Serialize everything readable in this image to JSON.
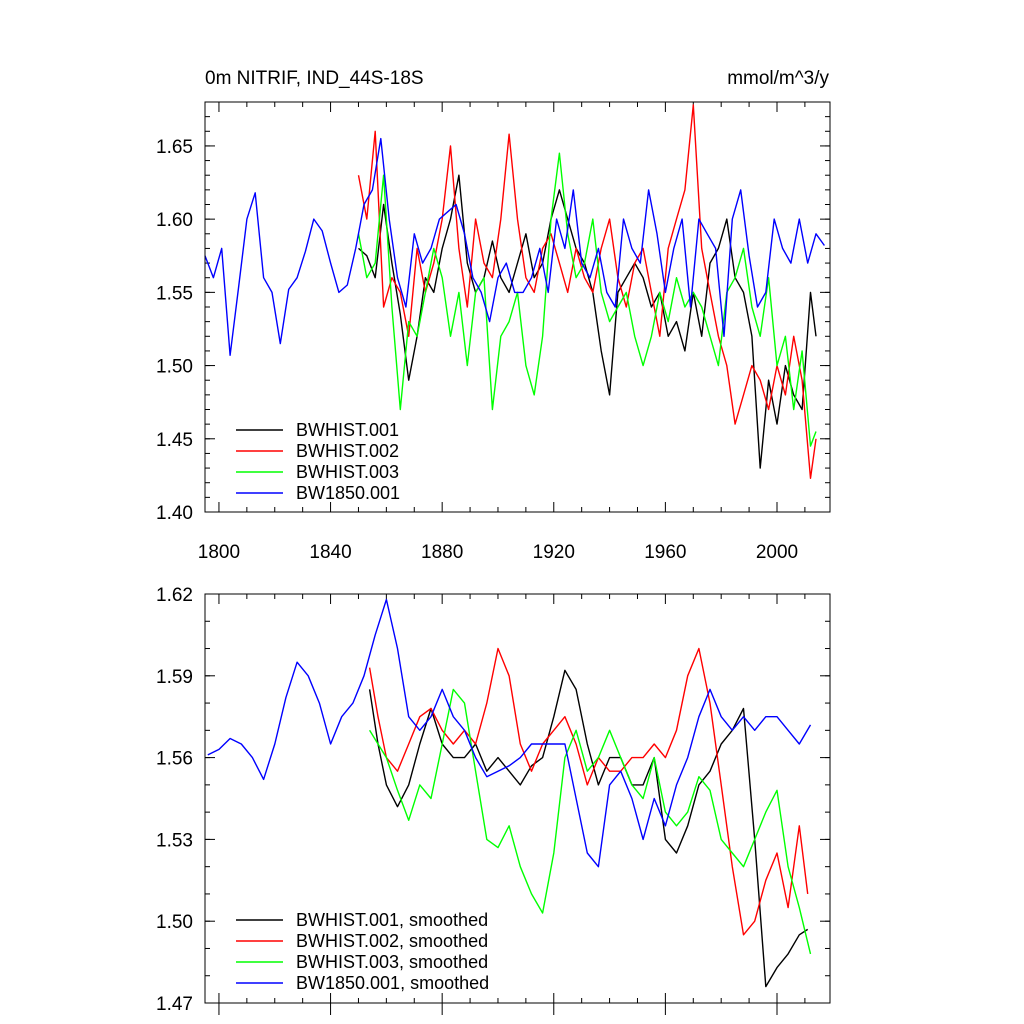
{
  "chart_data": [
    {
      "type": "line",
      "title_left": "0m NITRIF, IND_44S-18S",
      "title_right": "mmol/m^3/y",
      "xlim": [
        1795,
        2019
      ],
      "ylim": [
        1.4,
        1.68
      ],
      "xticks": [
        1800,
        1840,
        1880,
        1920,
        1960,
        2000
      ],
      "yticks": [
        1.4,
        1.45,
        1.5,
        1.55,
        1.6,
        1.65
      ],
      "ytick_labels": [
        "1.40",
        "1.45",
        "1.50",
        "1.55",
        "1.60",
        "1.65"
      ],
      "legend": "bottom-left",
      "series": [
        {
          "name": "BWHIST.001",
          "color": "#000000",
          "x": [
            1850,
            1853,
            1856,
            1859,
            1862,
            1865,
            1868,
            1871,
            1874,
            1877,
            1880,
            1883,
            1886,
            1889,
            1892,
            1895,
            1898,
            1901,
            1904,
            1907,
            1910,
            1913,
            1916,
            1919,
            1922,
            1925,
            1928,
            1931,
            1934,
            1937,
            1940,
            1943,
            1946,
            1949,
            1952,
            1955,
            1958,
            1961,
            1964,
            1967,
            1970,
            1973,
            1976,
            1979,
            1982,
            1985,
            1988,
            1991,
            1994,
            1997,
            2000,
            2003,
            2006,
            2009,
            2012,
            2014
          ],
          "y": [
            1.58,
            1.575,
            1.56,
            1.61,
            1.57,
            1.535,
            1.49,
            1.52,
            1.56,
            1.55,
            1.58,
            1.6,
            1.63,
            1.57,
            1.55,
            1.56,
            1.585,
            1.56,
            1.55,
            1.57,
            1.59,
            1.56,
            1.57,
            1.6,
            1.62,
            1.6,
            1.58,
            1.57,
            1.55,
            1.51,
            1.48,
            1.55,
            1.56,
            1.57,
            1.56,
            1.54,
            1.55,
            1.52,
            1.53,
            1.51,
            1.55,
            1.52,
            1.57,
            1.58,
            1.6,
            1.56,
            1.55,
            1.52,
            1.43,
            1.49,
            1.46,
            1.5,
            1.48,
            1.47,
            1.55,
            1.52
          ]
        },
        {
          "name": "BWHIST.002",
          "color": "#ff0000",
          "x": [
            1850,
            1853,
            1856,
            1859,
            1862,
            1865,
            1868,
            1871,
            1874,
            1877,
            1880,
            1883,
            1886,
            1889,
            1892,
            1895,
            1898,
            1901,
            1904,
            1907,
            1910,
            1913,
            1916,
            1919,
            1922,
            1925,
            1928,
            1931,
            1934,
            1937,
            1940,
            1943,
            1946,
            1949,
            1952,
            1955,
            1958,
            1961,
            1964,
            1967,
            1970,
            1973,
            1976,
            1979,
            1982,
            1985,
            1988,
            1991,
            1994,
            1997,
            2000,
            2003,
            2006,
            2009,
            2012,
            2014
          ],
          "y": [
            1.63,
            1.6,
            1.66,
            1.54,
            1.56,
            1.55,
            1.52,
            1.58,
            1.55,
            1.57,
            1.6,
            1.65,
            1.58,
            1.54,
            1.6,
            1.57,
            1.56,
            1.6,
            1.658,
            1.6,
            1.56,
            1.55,
            1.58,
            1.59,
            1.57,
            1.55,
            1.58,
            1.56,
            1.55,
            1.58,
            1.6,
            1.56,
            1.54,
            1.57,
            1.58,
            1.55,
            1.52,
            1.58,
            1.6,
            1.62,
            1.678,
            1.58,
            1.55,
            1.52,
            1.5,
            1.46,
            1.48,
            1.5,
            1.49,
            1.47,
            1.5,
            1.48,
            1.52,
            1.49,
            1.423,
            1.45
          ]
        },
        {
          "name": "BWHIST.003",
          "color": "#00ff00",
          "x": [
            1850,
            1853,
            1856,
            1859,
            1862,
            1865,
            1868,
            1871,
            1874,
            1877,
            1880,
            1883,
            1886,
            1889,
            1892,
            1895,
            1898,
            1901,
            1904,
            1907,
            1910,
            1913,
            1916,
            1919,
            1922,
            1925,
            1928,
            1931,
            1934,
            1937,
            1940,
            1943,
            1946,
            1949,
            1952,
            1955,
            1958,
            1961,
            1964,
            1967,
            1970,
            1973,
            1976,
            1979,
            1982,
            1985,
            1988,
            1991,
            1994,
            1997,
            2000,
            2003,
            2006,
            2009,
            2012,
            2014
          ],
          "y": [
            1.59,
            1.56,
            1.57,
            1.63,
            1.54,
            1.47,
            1.53,
            1.52,
            1.55,
            1.58,
            1.56,
            1.52,
            1.55,
            1.5,
            1.55,
            1.56,
            1.47,
            1.52,
            1.53,
            1.55,
            1.5,
            1.48,
            1.52,
            1.6,
            1.645,
            1.59,
            1.56,
            1.57,
            1.6,
            1.55,
            1.53,
            1.54,
            1.55,
            1.52,
            1.5,
            1.52,
            1.55,
            1.53,
            1.56,
            1.54,
            1.55,
            1.54,
            1.52,
            1.5,
            1.55,
            1.56,
            1.58,
            1.54,
            1.52,
            1.56,
            1.5,
            1.52,
            1.47,
            1.51,
            1.445,
            1.455
          ]
        },
        {
          "name": "BW1850.001",
          "color": "#0000ff",
          "x": [
            1795,
            1798,
            1801,
            1804,
            1807,
            1810,
            1813,
            1816,
            1819,
            1822,
            1825,
            1828,
            1831,
            1834,
            1837,
            1840,
            1843,
            1846,
            1849,
            1852,
            1855,
            1858,
            1861,
            1864,
            1867,
            1870,
            1873,
            1876,
            1879,
            1882,
            1885,
            1888,
            1891,
            1894,
            1897,
            1900,
            1903,
            1906,
            1909,
            1912,
            1915,
            1918,
            1921,
            1924,
            1927,
            1930,
            1933,
            1936,
            1939,
            1942,
            1945,
            1948,
            1951,
            1954,
            1957,
            1960,
            1963,
            1966,
            1969,
            1972,
            1975,
            1978,
            1981,
            1984,
            1987,
            1990,
            1993,
            1996,
            1999,
            2002,
            2005,
            2008,
            2011,
            2014,
            2017
          ],
          "y": [
            1.575,
            1.56,
            1.58,
            1.507,
            1.553,
            1.6,
            1.618,
            1.56,
            1.55,
            1.515,
            1.552,
            1.56,
            1.578,
            1.6,
            1.592,
            1.57,
            1.55,
            1.555,
            1.58,
            1.61,
            1.62,
            1.655,
            1.6,
            1.56,
            1.54,
            1.59,
            1.57,
            1.58,
            1.6,
            1.605,
            1.61,
            1.59,
            1.56,
            1.55,
            1.53,
            1.56,
            1.57,
            1.55,
            1.55,
            1.56,
            1.58,
            1.55,
            1.6,
            1.58,
            1.62,
            1.57,
            1.56,
            1.58,
            1.55,
            1.54,
            1.6,
            1.58,
            1.57,
            1.62,
            1.59,
            1.55,
            1.58,
            1.6,
            1.54,
            1.6,
            1.59,
            1.58,
            1.52,
            1.6,
            1.62,
            1.575,
            1.54,
            1.55,
            1.6,
            1.58,
            1.57,
            1.6,
            1.57,
            1.59,
            1.582
          ]
        }
      ]
    },
    {
      "type": "line",
      "xlim": [
        1795,
        2019
      ],
      "ylim": [
        1.47,
        1.62
      ],
      "xticks": [
        1800,
        1840,
        1880,
        1920,
        1960,
        2000
      ],
      "yticks": [
        1.47,
        1.5,
        1.53,
        1.56,
        1.59,
        1.62
      ],
      "ytick_labels": [
        "1.47",
        "1.50",
        "1.53",
        "1.56",
        "1.59",
        "1.62"
      ],
      "legend": "bottom-left",
      "series": [
        {
          "name": "BWHIST.001, smoothed",
          "color": "#000000",
          "x": [
            1854,
            1857,
            1860,
            1864,
            1868,
            1872,
            1876,
            1880,
            1884,
            1888,
            1892,
            1896,
            1900,
            1904,
            1908,
            1912,
            1916,
            1920,
            1924,
            1928,
            1932,
            1936,
            1940,
            1944,
            1948,
            1952,
            1956,
            1960,
            1964,
            1968,
            1972,
            1976,
            1980,
            1984,
            1988,
            1992,
            1996,
            2000,
            2004,
            2008,
            2011
          ],
          "y": [
            1.585,
            1.565,
            1.55,
            1.542,
            1.55,
            1.565,
            1.578,
            1.565,
            1.56,
            1.56,
            1.565,
            1.555,
            1.56,
            1.555,
            1.55,
            1.557,
            1.56,
            1.575,
            1.592,
            1.585,
            1.565,
            1.55,
            1.56,
            1.56,
            1.55,
            1.55,
            1.56,
            1.53,
            1.525,
            1.535,
            1.55,
            1.555,
            1.565,
            1.57,
            1.578,
            1.53,
            1.476,
            1.483,
            1.488,
            1.495,
            1.497
          ]
        },
        {
          "name": "BWHIST.002, smoothed",
          "color": "#ff0000",
          "x": [
            1854,
            1857,
            1860,
            1864,
            1868,
            1872,
            1876,
            1880,
            1884,
            1888,
            1892,
            1896,
            1900,
            1904,
            1908,
            1912,
            1916,
            1920,
            1924,
            1928,
            1932,
            1936,
            1940,
            1944,
            1948,
            1952,
            1956,
            1960,
            1964,
            1968,
            1972,
            1976,
            1980,
            1984,
            1988,
            1992,
            1996,
            2000,
            2004,
            2008,
            2011
          ],
          "y": [
            1.593,
            1.575,
            1.56,
            1.555,
            1.565,
            1.575,
            1.578,
            1.57,
            1.565,
            1.57,
            1.565,
            1.58,
            1.6,
            1.59,
            1.565,
            1.555,
            1.565,
            1.57,
            1.575,
            1.565,
            1.55,
            1.56,
            1.555,
            1.555,
            1.56,
            1.56,
            1.565,
            1.56,
            1.57,
            1.59,
            1.6,
            1.58,
            1.55,
            1.52,
            1.495,
            1.5,
            1.515,
            1.525,
            1.505,
            1.535,
            1.51
          ]
        },
        {
          "name": "BWHIST.003, smoothed",
          "color": "#00ff00",
          "x": [
            1854,
            1857,
            1860,
            1864,
            1868,
            1872,
            1876,
            1880,
            1884,
            1888,
            1892,
            1896,
            1900,
            1904,
            1908,
            1912,
            1916,
            1920,
            1924,
            1928,
            1932,
            1936,
            1940,
            1944,
            1948,
            1952,
            1956,
            1960,
            1964,
            1968,
            1972,
            1976,
            1980,
            1984,
            1988,
            1992,
            1996,
            2000,
            2004,
            2008,
            2012
          ],
          "y": [
            1.57,
            1.565,
            1.56,
            1.548,
            1.537,
            1.55,
            1.545,
            1.565,
            1.585,
            1.58,
            1.555,
            1.53,
            1.527,
            1.535,
            1.52,
            1.51,
            1.503,
            1.525,
            1.56,
            1.57,
            1.555,
            1.56,
            1.57,
            1.56,
            1.55,
            1.545,
            1.56,
            1.54,
            1.535,
            1.54,
            1.553,
            1.548,
            1.53,
            1.525,
            1.52,
            1.53,
            1.54,
            1.548,
            1.52,
            1.505,
            1.488
          ]
        },
        {
          "name": "BW1850.001, smoothed",
          "color": "#0000ff",
          "x": [
            1796,
            1800,
            1804,
            1808,
            1812,
            1816,
            1820,
            1824,
            1828,
            1832,
            1836,
            1840,
            1844,
            1848,
            1852,
            1856,
            1860,
            1864,
            1868,
            1872,
            1876,
            1880,
            1884,
            1888,
            1892,
            1896,
            1900,
            1904,
            1908,
            1912,
            1916,
            1920,
            1924,
            1928,
            1932,
            1936,
            1940,
            1944,
            1948,
            1952,
            1956,
            1960,
            1964,
            1968,
            1972,
            1976,
            1980,
            1984,
            1988,
            1992,
            1996,
            2000,
            2004,
            2008,
            2012
          ],
          "y": [
            1.561,
            1.563,
            1.567,
            1.565,
            1.56,
            1.552,
            1.565,
            1.582,
            1.595,
            1.59,
            1.58,
            1.565,
            1.575,
            1.58,
            1.59,
            1.605,
            1.618,
            1.6,
            1.575,
            1.57,
            1.575,
            1.585,
            1.575,
            1.57,
            1.56,
            1.553,
            1.555,
            1.557,
            1.56,
            1.565,
            1.565,
            1.565,
            1.565,
            1.545,
            1.525,
            1.52,
            1.55,
            1.555,
            1.545,
            1.53,
            1.545,
            1.535,
            1.55,
            1.56,
            1.575,
            1.585,
            1.575,
            1.57,
            1.575,
            1.57,
            1.575,
            1.575,
            1.57,
            1.565,
            1.572
          ]
        }
      ]
    }
  ]
}
